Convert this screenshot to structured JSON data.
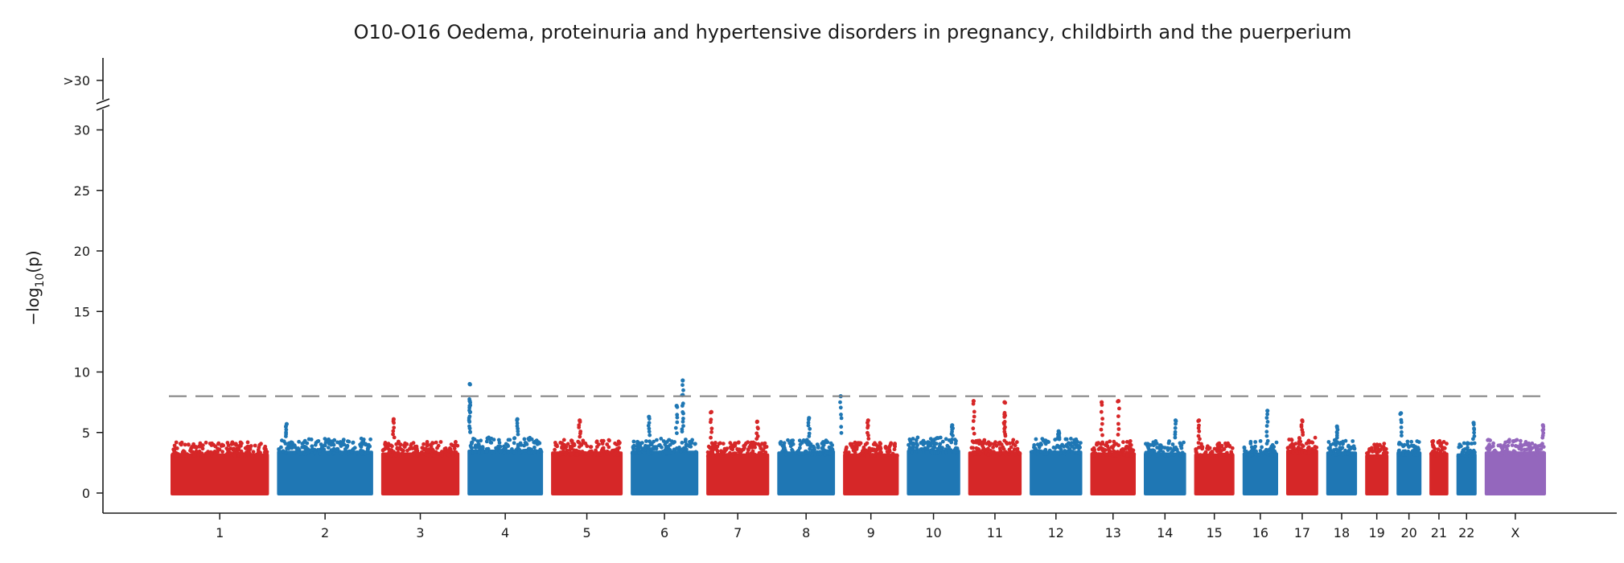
{
  "chart_data": {
    "type": "scatter",
    "subtype": "manhattan",
    "title": "O10-O16 Oedema, proteinuria and hypertensive disorders in pregnancy, childbirth and the puerperium",
    "ylabel_prefix": "−log",
    "ylabel_sub": "10",
    "ylabel_suffix": "(p)",
    "xlabel": "",
    "ylim": [
      0,
      30
    ],
    "y_ticks": [
      "0",
      "5",
      "10",
      "15",
      "20",
      "25",
      "30"
    ],
    "y_break_label": ">30",
    "threshold": 8,
    "colors": {
      "odd": "#d62728",
      "even": "#1f77b4",
      "X": "#9467bd",
      "threshold": "#808080",
      "axis": "#1a1a1a"
    },
    "chromosomes": [
      {
        "label": "1",
        "length": 249,
        "baseline_max": 4.2
      },
      {
        "label": "2",
        "length": 243,
        "baseline_max": 4.5,
        "peaks": [
          {
            "pos": 0.1,
            "y": 5.7
          }
        ]
      },
      {
        "label": "3",
        "length": 198,
        "baseline_max": 4.3,
        "peaks": [
          {
            "pos": 0.16,
            "y": 6.1
          }
        ]
      },
      {
        "label": "4",
        "length": 191,
        "baseline_max": 4.6,
        "peaks": [
          {
            "pos": 0.03,
            "y": 9.0
          },
          {
            "pos": 0.03,
            "y": 7.6
          },
          {
            "pos": 0.03,
            "y": 7.2
          },
          {
            "pos": 0.66,
            "y": 6.1
          }
        ]
      },
      {
        "label": "5",
        "length": 181,
        "baseline_max": 4.4,
        "peaks": [
          {
            "pos": 0.4,
            "y": 6.0
          }
        ]
      },
      {
        "label": "6",
        "length": 171,
        "baseline_max": 4.5,
        "peaks": [
          {
            "pos": 0.77,
            "y": 9.3
          },
          {
            "pos": 0.77,
            "y": 8.1
          },
          {
            "pos": 0.68,
            "y": 7.2
          },
          {
            "pos": 0.27,
            "y": 6.3
          }
        ]
      },
      {
        "label": "7",
        "length": 159,
        "baseline_max": 4.2,
        "peaks": [
          {
            "pos": 0.08,
            "y": 6.7
          },
          {
            "pos": 0.81,
            "y": 5.9
          }
        ]
      },
      {
        "label": "8",
        "length": 146,
        "baseline_max": 4.4,
        "peaks": [
          {
            "pos": 0.55,
            "y": 6.2
          },
          {
            "pos": 1.1,
            "y": 8.0
          }
        ]
      },
      {
        "label": "9",
        "length": 141,
        "baseline_max": 4.2,
        "peaks": [
          {
            "pos": 0.45,
            "y": 6.0
          }
        ]
      },
      {
        "label": "10",
        "length": 135,
        "baseline_max": 4.6,
        "peaks": [
          {
            "pos": 0.85,
            "y": 5.6
          }
        ]
      },
      {
        "label": "11",
        "length": 135,
        "baseline_max": 4.4,
        "peaks": [
          {
            "pos": 0.1,
            "y": 7.6
          },
          {
            "pos": 0.68,
            "y": 7.5
          },
          {
            "pos": 0.68,
            "y": 6.5
          }
        ]
      },
      {
        "label": "12",
        "length": 133,
        "baseline_max": 4.5,
        "peaks": [
          {
            "pos": 0.55,
            "y": 5.1
          }
        ]
      },
      {
        "label": "13",
        "length": 115,
        "baseline_max": 4.3,
        "peaks": [
          {
            "pos": 0.25,
            "y": 7.5
          },
          {
            "pos": 0.62,
            "y": 7.6
          }
        ]
      },
      {
        "label": "14",
        "length": 107,
        "baseline_max": 4.3,
        "peaks": [
          {
            "pos": 0.75,
            "y": 6.0
          }
        ]
      },
      {
        "label": "15",
        "length": 102,
        "baseline_max": 4.2,
        "peaks": [
          {
            "pos": 0.12,
            "y": 6.0
          }
        ]
      },
      {
        "label": "16",
        "length": 90,
        "baseline_max": 4.3,
        "peaks": [
          {
            "pos": 0.7,
            "y": 6.8
          }
        ]
      },
      {
        "label": "17",
        "length": 81,
        "baseline_max": 4.6,
        "peaks": [
          {
            "pos": 0.5,
            "y": 6.0
          }
        ]
      },
      {
        "label": "18",
        "length": 78,
        "baseline_max": 4.4,
        "peaks": [
          {
            "pos": 0.35,
            "y": 5.5
          }
        ]
      },
      {
        "label": "19",
        "length": 59,
        "baseline_max": 4.1
      },
      {
        "label": "20",
        "length": 63,
        "baseline_max": 4.4,
        "peaks": [
          {
            "pos": 0.18,
            "y": 6.6
          }
        ]
      },
      {
        "label": "21",
        "length": 48,
        "baseline_max": 4.3
      },
      {
        "label": "22",
        "length": 51,
        "baseline_max": 4.2,
        "peaks": [
          {
            "pos": 0.85,
            "y": 5.8
          }
        ]
      },
      {
        "label": "X",
        "length": 155,
        "baseline_max": 4.4,
        "peaks": [
          {
            "pos": 0.95,
            "y": 5.6
          }
        ]
      }
    ]
  }
}
